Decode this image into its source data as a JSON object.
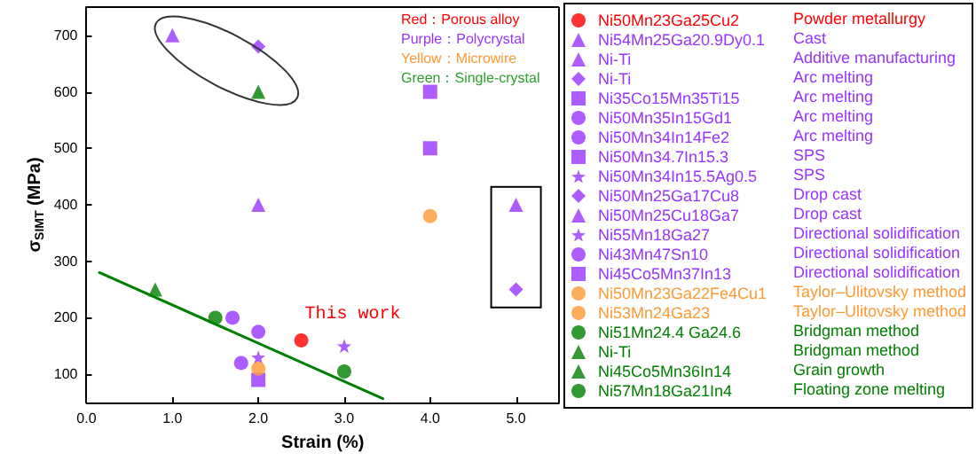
{
  "chart_data": {
    "type": "scatter",
    "xlabel": "Strain (%)",
    "ylabel": "σ$_{SIMT}$ (MPa)",
    "xlim": [
      0,
      5.5
    ],
    "xticks": [
      {
        "value": 0,
        "label": "0.0"
      },
      {
        "value": 1,
        "label": "1.0"
      },
      {
        "value": 2,
        "label": "2.0"
      },
      {
        "value": 3,
        "label": "3.0"
      },
      {
        "value": 4,
        "label": "4.0"
      },
      {
        "value": 5,
        "label": "5.0"
      }
    ],
    "ylim": [
      50,
      750
    ],
    "yticks": [
      100,
      200,
      300,
      400,
      500,
      600,
      700
    ],
    "grid": false,
    "legend": "right",
    "series": [
      {
        "name": "Ni50Mn23Ga25Cu2",
        "color": "#ff0000",
        "marker": "circle",
        "x": [
          2.5
        ],
        "values": [
          160
        ]
      },
      {
        "name": "Ni54Mn25Ga20.9Dy0.1",
        "color": "#9933ff",
        "marker": "triangle",
        "x": [
          2.0
        ],
        "values": [
          400
        ]
      },
      {
        "name": "Ni-Ti",
        "color": "#9933ff",
        "marker": "triangle",
        "x": [
          1.0
        ],
        "values": [
          700
        ]
      },
      {
        "name": "Ni-Ti",
        "color": "#9933ff",
        "marker": "diamond",
        "x": [
          2.0
        ],
        "values": [
          680
        ]
      },
      {
        "name": "Ni35Co15Mn35Ti15",
        "color": "#9933ff",
        "marker": "square",
        "x": [
          4.0
        ],
        "values": [
          600
        ]
      },
      {
        "name": "Ni50Mn35In15Gd1",
        "color": "#9933ff",
        "marker": "circle",
        "x": [
          1.7
        ],
        "values": [
          200
        ]
      },
      {
        "name": "Ni50Mn34In14Fe2",
        "color": "#9933ff",
        "marker": "circle",
        "x": [
          2.0
        ],
        "values": [
          175
        ]
      },
      {
        "name": "Ni50Mn34.7In15.3",
        "color": "#9933ff",
        "marker": "square",
        "x": [
          4.0
        ],
        "values": [
          500
        ]
      },
      {
        "name": "Ni50Mn34In15.5Ag0.5",
        "color": "#9933ff",
        "marker": "star",
        "x": [
          3.0
        ],
        "values": [
          150
        ]
      },
      {
        "name": "Ni50Mn25Ga17Cu8",
        "color": "#9933ff",
        "marker": "diamond",
        "x": [
          5.0
        ],
        "values": [
          250
        ]
      },
      {
        "name": "Ni50Mn25Cu18Ga7",
        "color": "#9933ff",
        "marker": "triangle",
        "x": [
          5.0
        ],
        "values": [
          400
        ]
      },
      {
        "name": "Ni55Mn18Ga27",
        "color": "#9933ff",
        "marker": "star",
        "x": [
          2.0
        ],
        "values": [
          130
        ]
      },
      {
        "name": "Ni43Mn47Sn10",
        "color": "#9933ff",
        "marker": "circle",
        "x": [
          1.8
        ],
        "values": [
          120
        ]
      },
      {
        "name": "Ni45Co5Mn37In13",
        "color": "#9933ff",
        "marker": "square",
        "x": [
          2.0
        ],
        "values": [
          90
        ]
      },
      {
        "name": "Ni50Mn23Ga22Fe4Cu1",
        "color": "#ff9933",
        "marker": "circle",
        "x": [
          4.0
        ],
        "values": [
          380
        ]
      },
      {
        "name": "Ni53Mn24Ga23",
        "color": "#ff9933",
        "marker": "circle",
        "x": [
          2.0
        ],
        "values": [
          110
        ]
      },
      {
        "name": "Ni51Mn24.4 Ga24.6",
        "color": "#008000",
        "marker": "circle",
        "x": [
          1.5
        ],
        "values": [
          200
        ]
      },
      {
        "name": "Ni-Ti",
        "color": "#008000",
        "marker": "triangle",
        "x": [
          2.0
        ],
        "values": [
          600
        ]
      },
      {
        "name": "Ni45Co5Mn36In14",
        "color": "#008000",
        "marker": "triangle",
        "x": [
          0.8
        ],
        "values": [
          250
        ]
      },
      {
        "name": "Ni57Mn18Ga21In4",
        "color": "#008000",
        "marker": "circle",
        "x": [
          3.0
        ],
        "values": [
          105
        ]
      },
      {
        "type": "line",
        "color": "#008000",
        "marker": "none",
        "line_style": "solid",
        "x": [
          0.15,
          3.45
        ],
        "values": [
          280,
          57
        ]
      }
    ],
    "annotations": [
      "This work",
      "Red：Porous alloy",
      "Purple：Polycrystal",
      "Yellow：Microwire",
      "Green：Single-crystal",
      "Powder metallurgy",
      "Cast",
      "Additive manufacturing",
      "Arc melting",
      "Arc melting",
      "Arc melting",
      "Arc melting",
      "SPS",
      "SPS",
      "Drop cast",
      "Drop cast",
      "Directional solidification",
      "Directional solidification",
      "Directional solidification",
      "Taylor–Ulitovsky method",
      "Taylor–Ulitovsky method",
      "Bridgman method",
      "Bridgman method",
      "Grain growth",
      "Floating zone melting"
    ]
  }
}
